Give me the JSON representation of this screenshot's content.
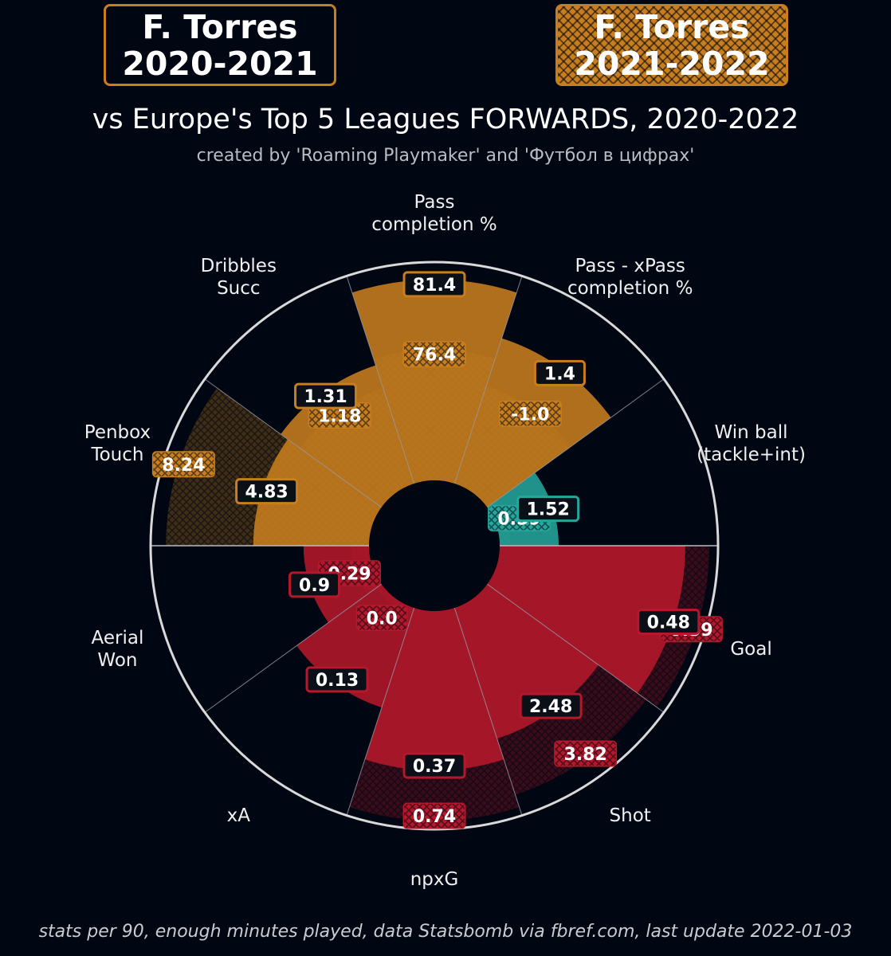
{
  "header": {
    "left_box": {
      "line1": "F. Torres",
      "line2": "2020-2021"
    },
    "right_box": {
      "line1": "F. Torres",
      "line2": "2021-2022"
    },
    "subtitle": "vs Europe's Top 5 Leagues FORWARDS, 2020-2022",
    "credit": "created by 'Roaming Playmaker' and 'Футбол в цифрах'"
  },
  "footer": "stats per 90, enough minutes played, data Statsbomb via fbref.com, last update 2022-01-03",
  "colors": {
    "background": "#000612",
    "passing": "#c87e1e",
    "defending": "#26a69a",
    "attacking": "#b5182b",
    "ring": "#d9d9d9"
  },
  "chart_data": {
    "type": "pizza",
    "percentile_max": 100,
    "series": [
      {
        "name": "2020-2021",
        "style": "solid"
      },
      {
        "name": "2021-2022",
        "style": "hatched"
      }
    ],
    "categories": [
      {
        "label": [
          "Pass",
          "completion %"
        ],
        "group": "passing",
        "solid": {
          "display": "81.4",
          "percentile": 92
        },
        "hatched": {
          "display": "76.4",
          "percentile": 60
        }
      },
      {
        "label": [
          "Pass - xPass",
          "completion %"
        ],
        "group": "passing",
        "solid": {
          "display": "1.4",
          "percentile": 70
        },
        "hatched": {
          "display": "-1.0",
          "percentile": 47
        }
      },
      {
        "label": [
          "Win ball",
          "(tackle+int)"
        ],
        "group": "defending",
        "solid": {
          "display": "1.52",
          "percentile": 27
        },
        "hatched": {
          "display": "0.59",
          "percentile": 5
        }
      },
      {
        "label": [
          "Goal"
        ],
        "group": "attacking",
        "solid": {
          "display": "0.48",
          "percentile": 85
        },
        "hatched": {
          "display": "0.59",
          "percentile": 96
        }
      },
      {
        "label": [
          "Shot"
        ],
        "group": "attacking",
        "solid": {
          "display": "2.48",
          "percentile": 63
        },
        "hatched": {
          "display": "3.82",
          "percentile": 90
        }
      },
      {
        "label": [
          "npxG"
        ],
        "group": "attacking",
        "solid": {
          "display": "0.37",
          "percentile": 73
        },
        "hatched": {
          "display": "0.74",
          "percentile": 96
        }
      },
      {
        "label": [
          "xA"
        ],
        "group": "attacking",
        "solid": {
          "display": "0.13",
          "percentile": 48
        },
        "hatched": {
          "display": "0.0",
          "percentile": 3
        }
      },
      {
        "label": [
          "Aerial",
          "Won"
        ],
        "group": "attacking",
        "solid": {
          "display": "0.9",
          "percentile": 30
        },
        "hatched": {
          "display": "0.29",
          "percentile": 8
        }
      },
      {
        "label": [
          "Penbox",
          "Touch"
        ],
        "group": "passing",
        "solid": {
          "display": "4.83",
          "percentile": 53
        },
        "hatched": {
          "display": "8.24",
          "percentile": 93
        }
      },
      {
        "label": [
          "Dribbles",
          "Succ"
        ],
        "group": "passing",
        "solid": {
          "display": "1.31",
          "percentile": 57
        },
        "hatched": {
          "display": "1.18",
          "percentile": 46
        }
      }
    ]
  }
}
